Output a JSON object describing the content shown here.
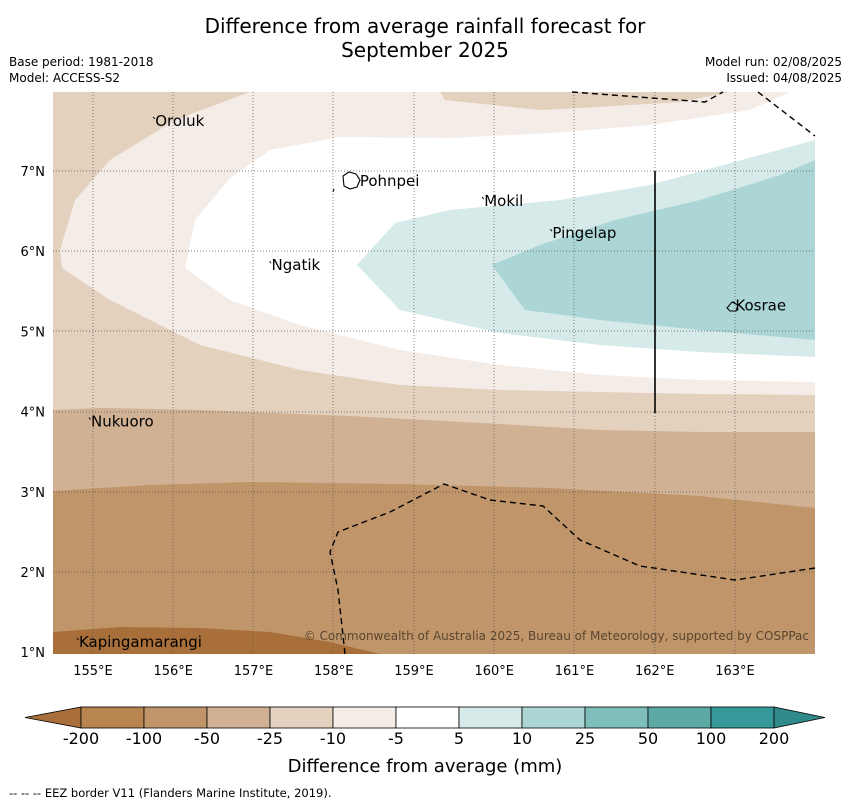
{
  "title_line1": "Difference from average rainfall forecast for",
  "title_line2": "September 2025",
  "meta_left": [
    "Base period: 1981-2018",
    "Model: ACCESS-S2"
  ],
  "meta_right": [
    "Model run: 02/08/2025",
    "Issued: 04/08/2025"
  ],
  "lon_ticks": [
    "155°E",
    "156°E",
    "157°E",
    "158°E",
    "159°E",
    "160°E",
    "161°E",
    "162°E",
    "163°E"
  ],
  "lat_ticks": [
    "7°N",
    "6°N",
    "5°N",
    "4°N",
    "3°N",
    "2°N",
    "1°N"
  ],
  "places": [
    {
      "name": "Oroluk",
      "lon": 155.75,
      "lat": 7.6
    },
    {
      "name": "Pohnpei",
      "lon": 158.3,
      "lat": 6.85
    },
    {
      "name": "Mokil",
      "lon": 159.85,
      "lat": 6.6
    },
    {
      "name": "Pingelap",
      "lon": 160.7,
      "lat": 6.2
    },
    {
      "name": "Ngatik",
      "lon": 157.2,
      "lat": 5.8
    },
    {
      "name": "Kosrae",
      "lon": 162.98,
      "lat": 5.3
    },
    {
      "name": "Nukuoro",
      "lon": 154.95,
      "lat": 3.85
    },
    {
      "name": "Kapingamarangi",
      "lon": 154.8,
      "lat": 1.1
    }
  ],
  "copyright": "© Commonwealth of Australia 2025, Bureau of Meteorology, supported by COSPPac",
  "colorbar": {
    "labels": [
      "-200",
      "-100",
      "-50",
      "-25",
      "-10",
      "-5",
      "5",
      "10",
      "25",
      "50",
      "100",
      "200"
    ],
    "colors": [
      "#a86f3a",
      "#b8844f",
      "#c0956a",
      "#d0b194",
      "#e3d0bd",
      "#f4ece7",
      "#ffffff",
      "#d5eae9",
      "#acd6d5",
      "#7ebfbc",
      "#5ca9a6",
      "#35999a",
      "#2f8a89"
    ],
    "title": "Difference from average (mm)"
  },
  "footnote": "--  --  -- EEZ border V11 (Flanders Marine Institute, 2019)."
}
